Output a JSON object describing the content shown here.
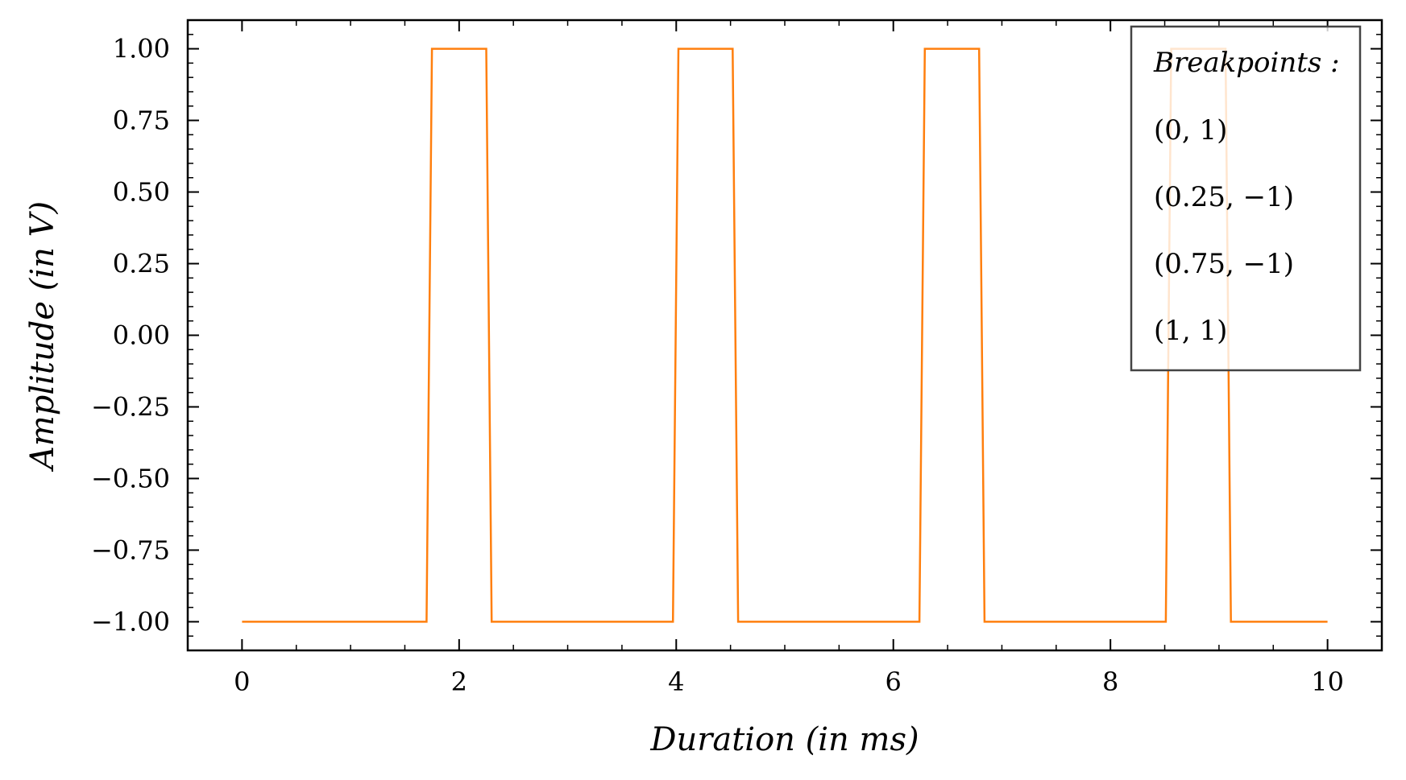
{
  "chart_data": {
    "type": "line",
    "title": "",
    "xlabel": "Duration (in ms)",
    "ylabel": "Amplitude (in V)",
    "xlim": [
      -0.5,
      10.5
    ],
    "ylim": [
      -1.1,
      1.1
    ],
    "xticks": [
      0,
      2,
      4,
      6,
      8,
      10
    ],
    "xtick_labels": [
      "0",
      "2",
      "4",
      "6",
      "8",
      "10"
    ],
    "yticks": [
      1.0,
      0.75,
      0.5,
      0.25,
      0.0,
      -0.25,
      -0.5,
      -0.75,
      -1.0
    ],
    "ytick_labels": [
      "1.00",
      "0.75",
      "0.50",
      "0.25",
      "0.00",
      "−0.25",
      "−0.50",
      "−0.75",
      "−1.00"
    ],
    "grid": false,
    "series": [
      {
        "color": "#ff7f0e",
        "x": [
          0,
          1.7,
          1.75,
          2.25,
          2.3,
          3.97,
          4.02,
          4.52,
          4.57,
          6.24,
          6.29,
          6.79,
          6.84,
          8.51,
          8.56,
          9.06,
          9.11,
          10
        ],
        "y": [
          -1,
          -1,
          1,
          1,
          -1,
          -1,
          1,
          1,
          -1,
          -1,
          1,
          1,
          -1,
          -1,
          1,
          1,
          -1,
          -1
        ]
      }
    ],
    "legend": {
      "placement": "top-right",
      "title": "Breakpoints :",
      "entries": [
        "(0, 1)",
        "(0.25, −1)",
        "(0.75, −1)",
        "(1, 1)"
      ]
    }
  }
}
